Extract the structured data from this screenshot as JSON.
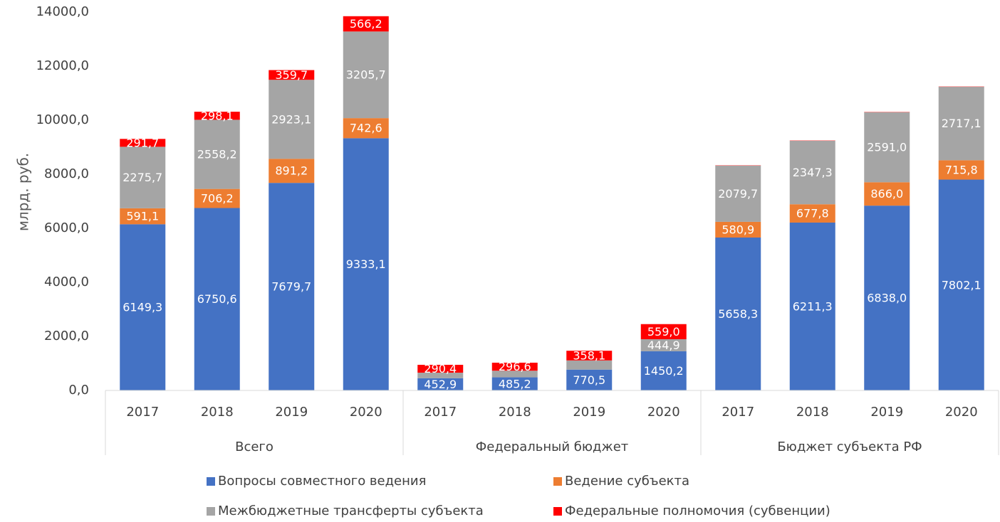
{
  "chart_data": {
    "type": "stacked_bar",
    "y_label": "млрд. руб.",
    "categories": [
      "2017",
      "2018",
      "2019",
      "2020",
      "2017",
      "2018",
      "2019",
      "2020",
      "2017",
      "2018",
      "2019",
      "2020"
    ],
    "groups": [
      "Всего",
      "Федеральный бюджет",
      "Бюджет субъекта РФ"
    ],
    "ylim": [
      0,
      14000
    ],
    "yticks": [
      {
        "value": 0,
        "label": "0,0"
      },
      {
        "value": 2000,
        "label": "2000,0"
      },
      {
        "value": 4000,
        "label": "4000,0"
      },
      {
        "value": 6000,
        "label": "6000,0"
      },
      {
        "value": 8000,
        "label": "8000,0"
      },
      {
        "value": 10000,
        "label": "10000,0"
      },
      {
        "value": 12000,
        "label": "12000,0"
      },
      {
        "value": 14000,
        "label": "14000,0"
      }
    ],
    "grid": false,
    "series": [
      {
        "name": "Вопросы совместного ведения",
        "color": "#4472c4",
        "values": [
          6149.3,
          6750.6,
          7679.7,
          9333.1,
          452.9,
          485.2,
          770.5,
          1450.2,
          5658.3,
          6211.3,
          6838.0,
          7802.1
        ],
        "value_labels": [
          "6149,3",
          "6750,6",
          "7679,7",
          "9333,1",
          "452,9",
          "485,2",
          "770,5",
          "1450,2",
          "5658,3",
          "6211,3",
          "6838,0",
          "7802,1"
        ]
      },
      {
        "name": "Ведение субъекта",
        "color": "#ed7d31",
        "values": [
          591.1,
          706.2,
          891.2,
          742.6,
          null,
          null,
          null,
          null,
          580.9,
          677.8,
          866.0,
          715.8
        ],
        "value_labels": [
          "591,1",
          "706,2",
          "891,2",
          "742,6",
          null,
          null,
          null,
          null,
          "580,9",
          "677,8",
          "866,0",
          "715,8"
        ]
      },
      {
        "name": "Межбюджетные трансферты субъекта",
        "color": "#a5a5a5",
        "values": [
          2275.7,
          2558.2,
          2923.1,
          3205.7,
          205,
          245,
          340,
          444.9,
          2079.7,
          2347.3,
          2591.0,
          2717.1
        ],
        "value_labels": [
          "2275,7",
          "2558,2",
          "2923,1",
          "3205,7",
          null,
          null,
          null,
          "444,9",
          "2079,7",
          "2347,3",
          "2591,0",
          "2717,1"
        ]
      },
      {
        "name": "Федеральные полномочия (субвенции)",
        "color": "#ff0000",
        "values": [
          291.7,
          298.1,
          359.7,
          566.2,
          290.4,
          296.6,
          358.1,
          559.0,
          10,
          10,
          10,
          10
        ],
        "value_labels": [
          "291,7",
          "298,1",
          "359,7",
          "566,2",
          "290,4",
          "296,6",
          "358,1",
          "559,0",
          null,
          null,
          null,
          null
        ]
      }
    ]
  }
}
